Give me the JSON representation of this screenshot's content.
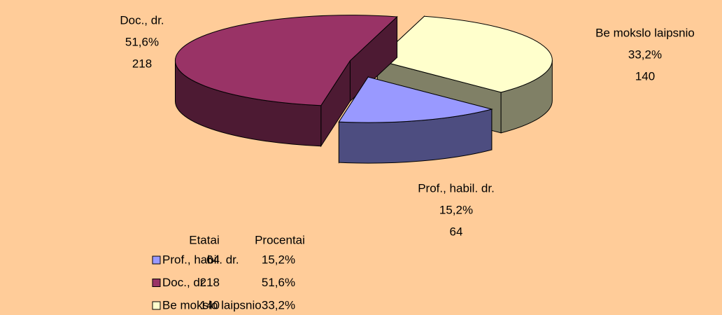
{
  "chart_data": {
    "type": "pie3d",
    "categories": [
      "Prof., habil. dr.",
      "Doc., dr.",
      "Be mokslo laipsnio"
    ],
    "colors": [
      "#9999ff",
      "#993366",
      "#ffffcc"
    ],
    "series": [
      {
        "name": "Etatai",
        "values": [
          64,
          218,
          140
        ]
      },
      {
        "name": "Procentai",
        "values": [
          15.2,
          51.6,
          33.2
        ],
        "value_labels": [
          "15,2%",
          "51,6%",
          "33,2%"
        ]
      }
    ],
    "exploded": true,
    "legend": "bottom-left",
    "data_table": true
  }
}
